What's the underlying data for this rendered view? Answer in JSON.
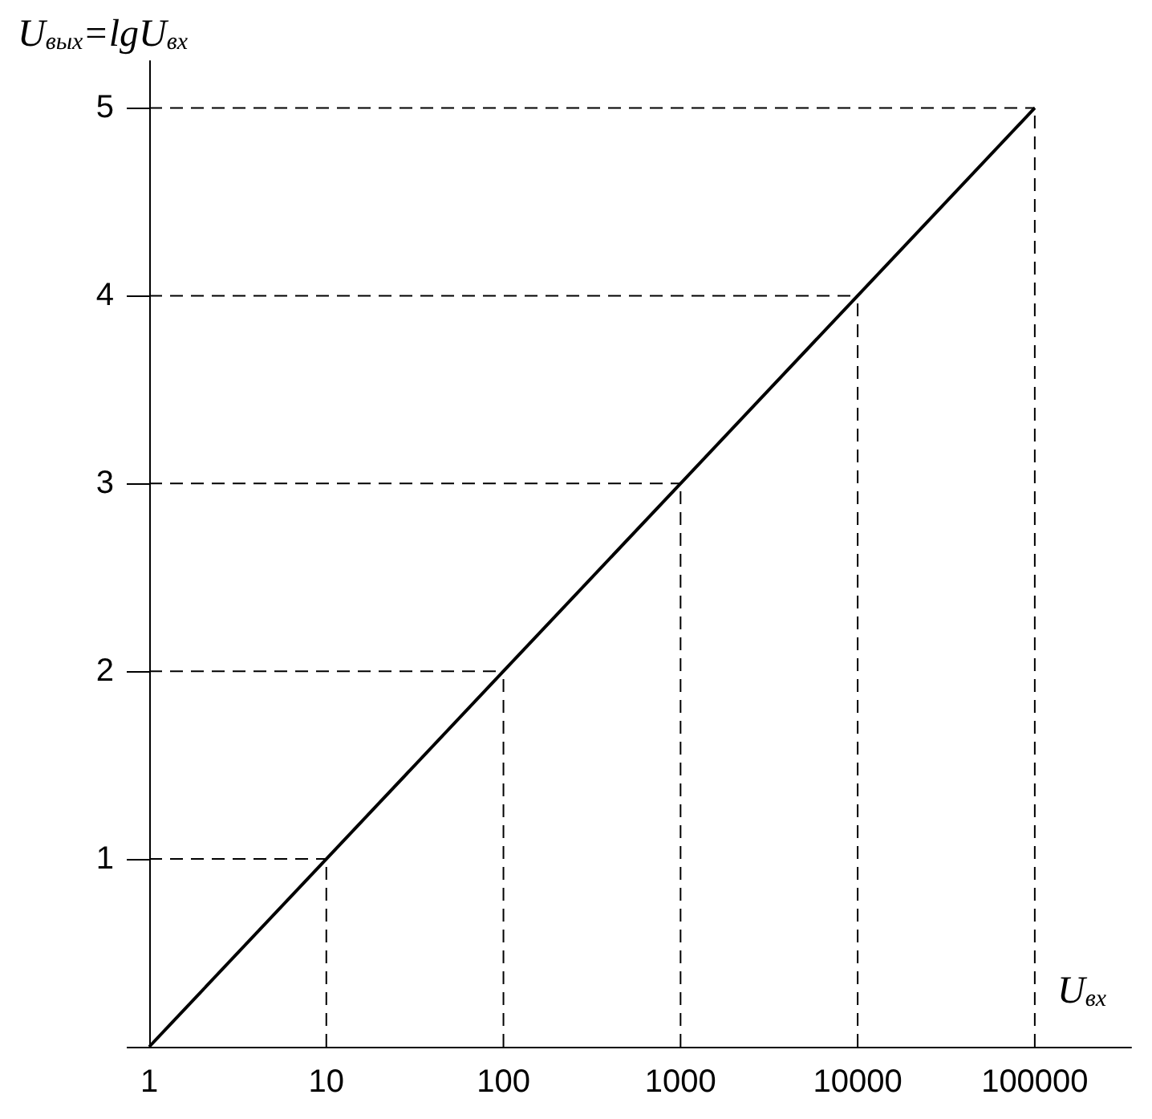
{
  "chart_data": {
    "type": "line",
    "xlabel": "U$_{вх}$",
    "ylabel": "U$_{вых}$=lgU$_{вх}$",
    "x": [
      1,
      10,
      100,
      1000,
      10000,
      100000
    ],
    "series": [
      {
        "color": "#000000",
        "values": [
          0,
          1,
          2,
          3,
          4,
          5
        ]
      },
      {
        "color": "#000000",
        "line_style": "dashed",
        "x": [
          10,
          10
        ],
        "values": [
          0,
          1
        ]
      },
      {
        "color": "#000000",
        "line_style": "dashed",
        "x": [
          100,
          100
        ],
        "values": [
          0,
          2
        ]
      },
      {
        "color": "#000000",
        "line_style": "dashed",
        "x": [
          1000,
          1000
        ],
        "values": [
          0,
          3
        ]
      },
      {
        "color": "#000000",
        "line_style": "dashed",
        "x": [
          10000,
          10000
        ],
        "values": [
          0,
          4
        ]
      },
      {
        "color": "#000000",
        "line_style": "dashed",
        "x": [
          100000,
          100000
        ],
        "values": [
          0,
          5
        ]
      },
      {
        "color": "#000000",
        "line_style": "dashed",
        "x": [
          1,
          10
        ],
        "values": [
          1,
          1
        ]
      },
      {
        "color": "#000000",
        "line_style": "dashed",
        "x": [
          1,
          100
        ],
        "values": [
          2,
          2
        ]
      },
      {
        "color": "#000000",
        "line_style": "dashed",
        "x": [
          1,
          1000
        ],
        "values": [
          3,
          3
        ]
      },
      {
        "color": "#000000",
        "line_style": "dashed",
        "x": [
          1,
          10000
        ],
        "values": [
          4,
          4
        ]
      },
      {
        "color": "#000000",
        "line_style": "dashed",
        "x": [
          1,
          100000
        ],
        "values": [
          5,
          5
        ]
      }
    ],
    "log": "x",
    "xlim": [
      1,
      350000
    ],
    "xticks": [
      1,
      10,
      100,
      1000,
      10000,
      100000
    ],
    "ylim": [
      0,
      5.25
    ],
    "yticks": [
      {
        "value": 0,
        "label": null
      },
      1,
      2,
      3,
      4,
      5
    ],
    "marker": "none",
    "line_style": "solid"
  }
}
